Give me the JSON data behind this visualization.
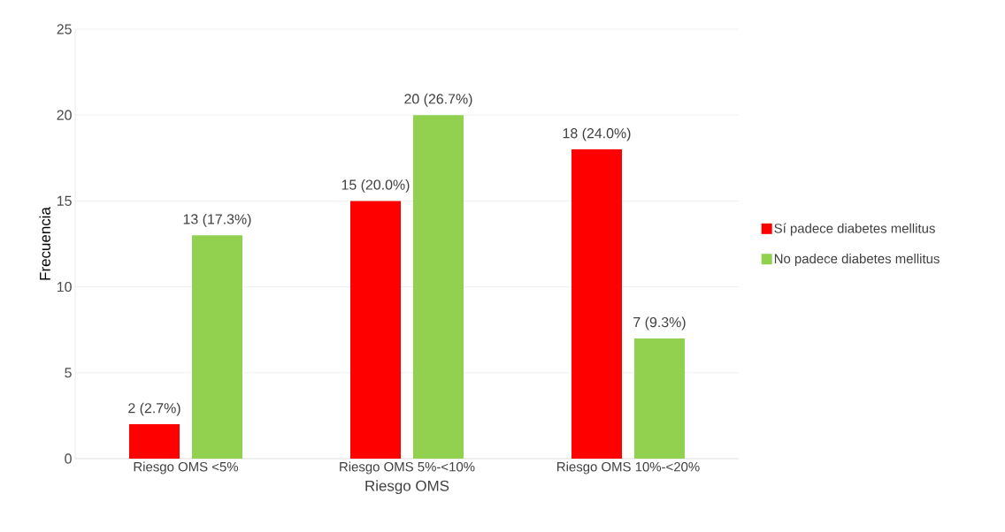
{
  "chart_data": {
    "type": "bar",
    "xlabel": "Riesgo OMS",
    "ylabel": "Frecuencia",
    "categories": [
      "Riesgo OMS <5%",
      "Riesgo OMS 5%-<10%",
      "Riesgo OMS 10%-<20%"
    ],
    "series": [
      {
        "name": "Sí padece diabetes mellitus",
        "color": "#ff0000",
        "values": [
          2,
          15,
          18
        ],
        "value_labels": [
          "2 (2.7%)",
          "15 (20.0%)",
          "18 (24.0%)"
        ]
      },
      {
        "name": "No padece diabetes mellitus",
        "color": "#92d050",
        "values": [
          13,
          20,
          7
        ],
        "value_labels": [
          "13 (17.3%)",
          "20 (26.7%)",
          "7 (9.3%)"
        ]
      }
    ],
    "ylim": [
      0,
      25
    ],
    "yticks": [
      0,
      5,
      10,
      15,
      20,
      25
    ],
    "grid": "y",
    "legend": "right"
  }
}
